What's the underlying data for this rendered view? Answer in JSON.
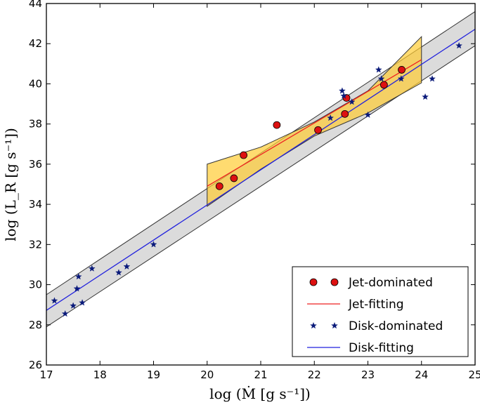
{
  "chart_data": {
    "type": "scatter",
    "title": "",
    "xlabel": "log (Ṁ [g s⁻¹])",
    "ylabel": "log (L_R [g s⁻¹])",
    "xlim": [
      17,
      25
    ],
    "ylim": [
      26,
      44
    ],
    "xticks": [
      17,
      18,
      19,
      20,
      21,
      22,
      23,
      24,
      25
    ],
    "yticks": [
      26,
      28,
      30,
      32,
      34,
      36,
      38,
      40,
      42,
      44
    ],
    "legend_position": "lower-right",
    "series": [
      {
        "name": "Jet-dominated",
        "kind": "points",
        "marker": "circle",
        "color": "#dd1111",
        "x": [
          20.23,
          20.5,
          20.68,
          21.3,
          22.07,
          22.57,
          22.6,
          23.3,
          23.63
        ],
        "y": [
          34.9,
          35.3,
          36.45,
          37.95,
          37.7,
          38.5,
          39.3,
          39.95,
          40.7
        ]
      },
      {
        "name": "Jet-fitting",
        "kind": "line",
        "color": "#ee2222",
        "x": [
          20.0,
          24.0
        ],
        "y": [
          34.9,
          41.2
        ],
        "band": {
          "color": "#ffcc33",
          "x": [
            20.0,
            21.0,
            22.0,
            23.0,
            24.0
          ],
          "upper": [
            36.0,
            36.85,
            38.1,
            39.65,
            42.35
          ],
          "lower": [
            33.9,
            35.75,
            37.4,
            38.55,
            40.05
          ]
        }
      },
      {
        "name": "Disk-dominated",
        "kind": "points",
        "marker": "star",
        "color": "#0a1a7a",
        "x": [
          17.15,
          17.35,
          17.5,
          17.57,
          17.6,
          17.67,
          17.85,
          18.35,
          18.5,
          19.0,
          22.3,
          22.52,
          22.55,
          22.7,
          23.0,
          23.2,
          23.25,
          23.62,
          24.07,
          24.2,
          24.7
        ],
        "y": [
          29.2,
          28.55,
          28.95,
          29.8,
          30.4,
          29.1,
          30.8,
          30.6,
          30.9,
          32.0,
          38.3,
          39.65,
          39.4,
          39.1,
          38.45,
          40.7,
          40.25,
          40.25,
          39.35,
          40.25,
          41.9
        ]
      },
      {
        "name": "Disk-fitting",
        "kind": "line",
        "color": "#2222dd",
        "x": [
          17.0,
          25.0
        ],
        "y": [
          28.72,
          42.72
        ],
        "band": {
          "color": "#cccccc",
          "x": [
            17.0,
            25.0
          ],
          "upper": [
            29.5,
            43.6
          ],
          "lower": [
            27.9,
            41.9
          ]
        }
      }
    ]
  }
}
